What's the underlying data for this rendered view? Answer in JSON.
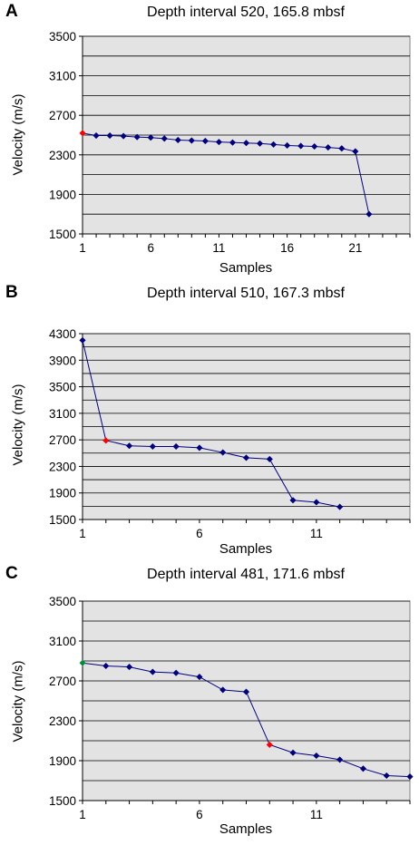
{
  "chart_data": [
    {
      "type": "line",
      "panel": "A",
      "title": "Depth interval 520, 165.8 mbsf",
      "xlabel": "Samples",
      "ylabel": "Velocity (m/s)",
      "xlim": [
        1,
        25
      ],
      "ylim": [
        1500,
        3500
      ],
      "xticks": [
        1,
        6,
        11,
        16,
        21
      ],
      "yticks": [
        1500,
        1900,
        2300,
        2700,
        3100,
        3500
      ],
      "grid": true,
      "background": "#e3e3e3",
      "line_color": "#00007f",
      "series": [
        {
          "x": [
            1,
            2,
            3,
            4,
            5,
            6,
            7,
            8,
            9,
            10,
            11,
            12,
            13,
            14,
            15,
            16,
            17,
            18,
            19,
            20,
            21,
            22
          ],
          "values": [
            2520,
            2495,
            2495,
            2490,
            2480,
            2475,
            2465,
            2450,
            2445,
            2440,
            2430,
            2425,
            2420,
            2415,
            2405,
            2395,
            2390,
            2385,
            2375,
            2365,
            2335,
            1700
          ],
          "point_colors": {
            "1": "#ff0000"
          }
        }
      ]
    },
    {
      "type": "line",
      "panel": "B",
      "title": "Depth interval 510, 167.3 mbsf",
      "xlabel": "Samples",
      "ylabel": "Velocity (m/s)",
      "xlim": [
        1,
        15
      ],
      "ylim": [
        1500,
        4300
      ],
      "xticks": [
        1,
        6,
        11
      ],
      "yticks": [
        1500,
        1900,
        2300,
        2700,
        3100,
        3500,
        3900,
        4300
      ],
      "grid": true,
      "background": "#e3e3e3",
      "line_color": "#00007f",
      "series": [
        {
          "x": [
            1,
            2,
            3,
            4,
            5,
            6,
            7,
            8,
            9,
            10,
            11,
            12
          ],
          "values": [
            4200,
            2690,
            2610,
            2600,
            2600,
            2580,
            2510,
            2430,
            2410,
            1790,
            1760,
            1690
          ],
          "point_colors": {
            "2": "#ff0000"
          }
        }
      ]
    },
    {
      "type": "line",
      "panel": "C",
      "title": "Depth interval 481, 171.6 mbsf",
      "xlabel": "Samples",
      "ylabel": "Velocity (m/s)",
      "xlim": [
        1,
        15
      ],
      "ylim": [
        1500,
        3500
      ],
      "xticks": [
        1,
        6,
        11
      ],
      "yticks": [
        1500,
        1900,
        2300,
        2700,
        3100,
        3500
      ],
      "grid": true,
      "background": "#e3e3e3",
      "line_color": "#00007f",
      "series": [
        {
          "x": [
            1,
            2,
            3,
            4,
            5,
            6,
            7,
            8,
            9,
            10,
            11,
            12,
            13,
            14,
            15
          ],
          "values": [
            2880,
            2850,
            2840,
            2790,
            2780,
            2740,
            2610,
            2590,
            2060,
            1980,
            1950,
            1910,
            1820,
            1750,
            1740
          ],
          "point_colors": {
            "1": "#008c3a",
            "9": "#ff0000"
          }
        }
      ]
    }
  ]
}
